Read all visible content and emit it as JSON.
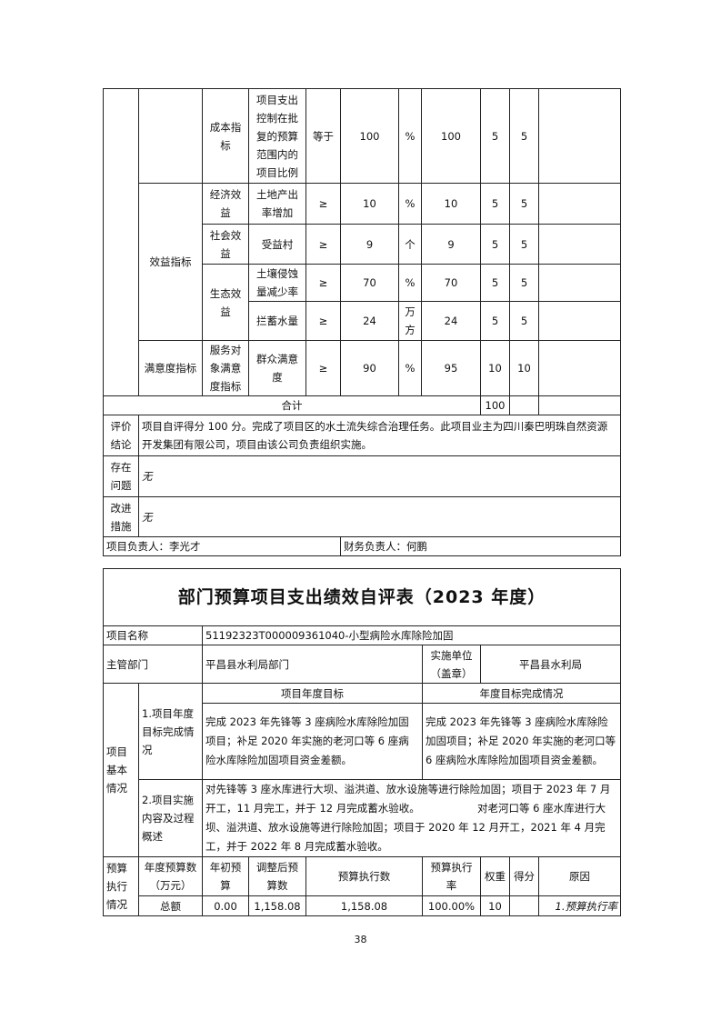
{
  "table1": {
    "rows": [
      {
        "level2": "成本指标",
        "indicator": "项目支出控制在批复的预算范围内的项目比例",
        "op": "等于",
        "target": "100",
        "unit": "%",
        "actual": "100",
        "weight": "5",
        "score": "5"
      },
      {
        "level2": "经济效益",
        "indicator": "土地产出率增加",
        "op": "≥",
        "target": "10",
        "unit": "%",
        "actual": "10",
        "weight": "5",
        "score": "5"
      },
      {
        "level2": "社会效益",
        "indicator": "受益村",
        "op": "≥",
        "target": "9",
        "unit": "个",
        "actual": "9",
        "weight": "5",
        "score": "5"
      },
      {
        "level2": "生态效益",
        "indicator": "土壤侵蚀量减少率",
        "op": "≥",
        "target": "70",
        "unit": "%",
        "actual": "70",
        "weight": "5",
        "score": "5"
      },
      {
        "indicator": "拦蓄水量",
        "op": "≥",
        "target": "24",
        "unit": "万方",
        "actual": "24",
        "weight": "5",
        "score": "5"
      },
      {
        "level1": "满意度指标",
        "level2": "服务对象满意度指标",
        "indicator": "群众满意度",
        "op": "≥",
        "target": "90",
        "unit": "%",
        "actual": "95",
        "weight": "10",
        "score": "10"
      }
    ],
    "benefit_label": "效益指标",
    "total_label": "合计",
    "total_weight": "100",
    "conclusion_label": "评价结论",
    "conclusion": "项目自评得分 100 分。完成了项目区的水土流失综合治理任务。此项目业主为四川秦巴明珠自然资源开发集团有限公司，项目由该公司负责组织实施。",
    "problems_label": "存在问题",
    "problems": "无",
    "measures_label": "改进措施",
    "measures": "无",
    "project_lead": "项目负责人：李光才",
    "finance_lead": "财务负责人：何鹏"
  },
  "table2": {
    "title": "部门预算项目支出绩效自评表（2023 年度）",
    "name_label": "项目名称",
    "name": "51192323T000009361040-小型病险水库除险加固",
    "dept_label": "主管部门",
    "dept": "平昌县水利局部门",
    "impl_unit_label": "实施单位（盖章）",
    "impl_unit": "平昌县水利局",
    "basic_label": "项目基本情况",
    "goal_label": "1.项目年度目标完成情况",
    "goal_header": "项目年度目标",
    "completion_header": "年度目标完成情况",
    "goal": "完成 2023 年先锋等 3 座病险水库除险加固项目；补足 2020 年实施的老河口等 6 座病险水库除险加固项目资金差额。",
    "completion": "完成 2023 年先锋等 3 座病险水库除险加固项目；补足 2020 年实施的老河口等 6 座病险水库除险加固项目资金差额。",
    "process_label": "2.项目实施内容及过程概述",
    "process": "对先锋等 3 座水库进行大坝、溢洪道、放水设施等进行除险加固；项目于 2023 年 7 月开工，11 月完工，并于 12 月完成蓄水验收。　　　　　　对老河口等 6 座水库进行大坝、溢洪道、放水设施等进行除险加固；项目于 2020 年 12 月开工，2021 年 4 月完工，并于 2022 年 8 月完成蓄水验收。",
    "budget_label": "预算执行情况",
    "budget_headers": [
      "年度预算数（万元）",
      "年初预算",
      "调整后预算数",
      "预算执行数",
      "预算执行率",
      "权重",
      "得分",
      "原因"
    ],
    "budget_total": [
      "总额",
      "0.00",
      "1,158.08",
      "1,158.08",
      "100.00%",
      "10",
      "",
      "1.预算执行率"
    ]
  },
  "page_number": "38"
}
